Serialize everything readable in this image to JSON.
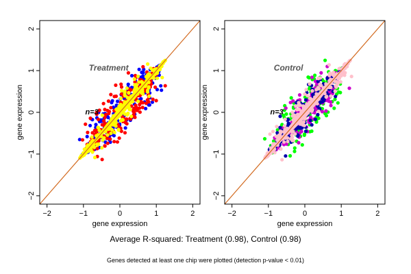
{
  "colors": {
    "background": "#ffffff",
    "axes": "#000000",
    "diagonal": "#d2691e",
    "diagonal_overlay": "#c8b26a"
  },
  "chart_data": [
    {
      "type": "scatter",
      "title": "Treatment",
      "xlabel": "gene expression",
      "ylabel": "gene expression",
      "xlim": [
        -2.2,
        2.2
      ],
      "ylim": [
        -2.2,
        2.2
      ],
      "xticks": [
        -2,
        -1,
        0,
        1,
        2
      ],
      "yticks": [
        -2,
        -1,
        0,
        1,
        2
      ],
      "grid": false,
      "annotation": "n=3",
      "diagonal": {
        "from": [
          -2.2,
          -2.2
        ],
        "to": [
          2.2,
          2.2
        ]
      },
      "series": [
        {
          "color": "#0000ff",
          "extent": [
            -1.05,
            1.15
          ],
          "spread": 0.22,
          "outliers": 28
        },
        {
          "color": "#ff0000",
          "extent": [
            -1.0,
            1.1
          ],
          "spread": 0.24,
          "outliers": 40
        },
        {
          "color": "#ffff00",
          "extent": [
            -1.1,
            1.25
          ],
          "spread": 0.15,
          "outliers": 10
        }
      ]
    },
    {
      "type": "scatter",
      "title": "Control",
      "xlabel": "gene expression",
      "ylabel": "gene expression",
      "xlim": [
        -2.2,
        2.2
      ],
      "ylim": [
        -2.2,
        2.2
      ],
      "xticks": [
        -2,
        -1,
        0,
        1,
        2
      ],
      "yticks": [
        -2,
        -1,
        0,
        1,
        2
      ],
      "grid": false,
      "annotation": "n=3",
      "diagonal": {
        "from": [
          -2.2,
          -2.2
        ],
        "to": [
          2.2,
          2.2
        ]
      },
      "series": [
        {
          "color": "#00ff00",
          "extent": [
            -1.05,
            1.1
          ],
          "spread": 0.24,
          "outliers": 40
        },
        {
          "color": "#cc00cc",
          "extent": [
            -1.0,
            1.1
          ],
          "spread": 0.22,
          "outliers": 12
        },
        {
          "color": "#0000aa",
          "extent": [
            -1.0,
            1.0
          ],
          "spread": 0.2,
          "outliers": 4
        },
        {
          "color": "#ffc0cb",
          "extent": [
            -1.1,
            1.25
          ],
          "spread": 0.17,
          "outliers": 14
        }
      ]
    }
  ],
  "footer": {
    "summary": "Average R-squared: Treatment (0.98), Control (0.98)",
    "note": "Genes detected at least one chip were plotted (detection p-value < 0.01)"
  }
}
